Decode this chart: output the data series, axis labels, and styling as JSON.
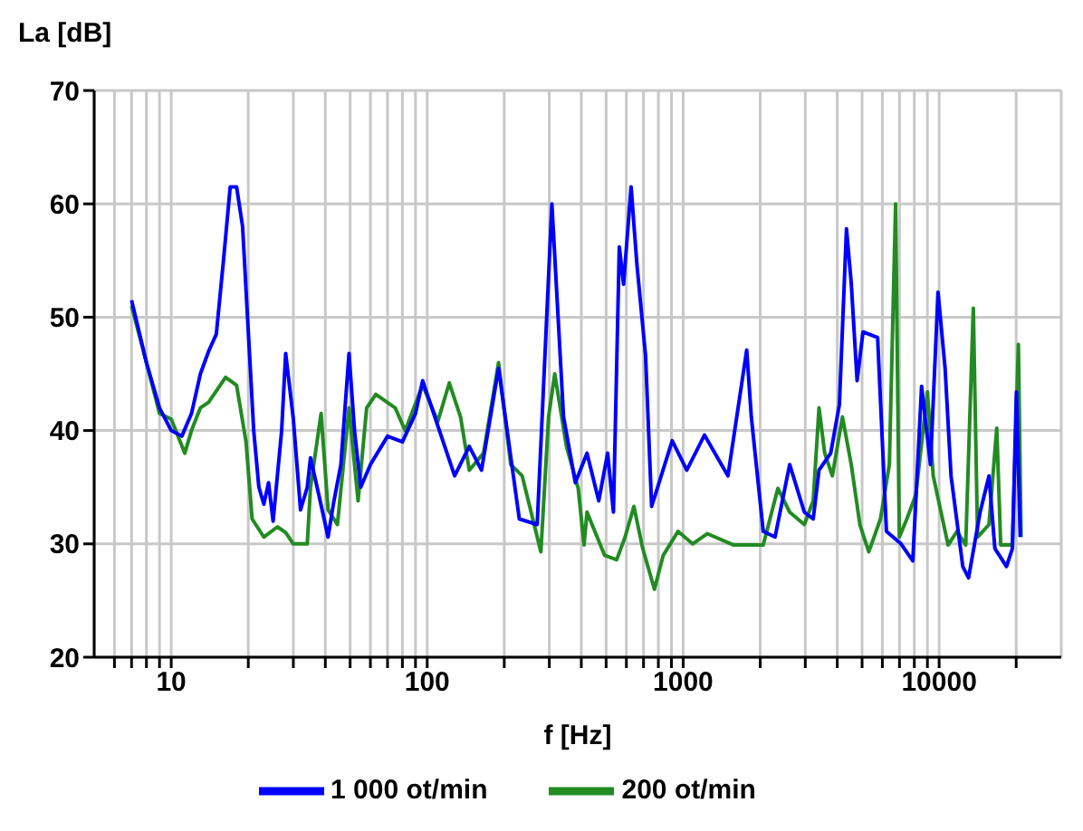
{
  "chart_data": {
    "type": "line",
    "xlabel": "f [Hz]",
    "ylabel": "La [dB]",
    "log": "x",
    "grid": true,
    "legend": "bottom",
    "marker": "none",
    "line_style": "solid",
    "xlim": [
      5,
      30000
    ],
    "ylim": [
      20,
      70
    ],
    "yticks": [
      20,
      30,
      40,
      50,
      60,
      70
    ],
    "xticks": [
      {
        "value": 6,
        "label": null
      },
      {
        "value": 7,
        "label": null
      },
      {
        "value": 8,
        "label": null
      },
      {
        "value": 9,
        "label": null
      },
      10,
      {
        "value": 20,
        "label": null
      },
      {
        "value": 30,
        "label": null
      },
      {
        "value": 40,
        "label": null
      },
      {
        "value": 50,
        "label": null
      },
      {
        "value": 60,
        "label": null
      },
      {
        "value": 70,
        "label": null
      },
      {
        "value": 80,
        "label": null
      },
      {
        "value": 90,
        "label": null
      },
      100,
      {
        "value": 200,
        "label": null
      },
      {
        "value": 300,
        "label": null
      },
      {
        "value": 400,
        "label": null
      },
      {
        "value": 500,
        "label": null
      },
      {
        "value": 600,
        "label": null
      },
      {
        "value": 700,
        "label": null
      },
      {
        "value": 800,
        "label": null
      },
      {
        "value": 900,
        "label": null
      },
      1000,
      {
        "value": 2000,
        "label": null
      },
      {
        "value": 3000,
        "label": null
      },
      {
        "value": 4000,
        "label": null
      },
      {
        "value": 5000,
        "label": null
      },
      {
        "value": 6000,
        "label": null
      },
      {
        "value": 7000,
        "label": null
      },
      {
        "value": 8000,
        "label": null
      },
      {
        "value": 9000,
        "label": null
      },
      10000,
      {
        "value": 20000,
        "label": null
      }
    ],
    "series": [
      {
        "name": "200 ot/min",
        "color": "#228b22",
        "x": [
          7,
          8,
          9,
          10,
          11.3,
          12,
          13,
          14,
          16.3,
          18,
          19.6,
          20.7,
          23,
          26,
          28,
          30,
          34,
          35,
          38.5,
          41,
          44.6,
          49.5,
          53.7,
          58,
          63,
          75,
          82,
          96,
          110,
          122,
          135,
          146,
          166,
          190,
          212,
          235,
          278,
          298,
          315,
          350,
          389,
          410,
          421,
          493,
          550,
          593,
          642,
          695,
          772,
          836,
          955,
          1089,
          1242,
          1575,
          2055,
          2344,
          2607,
          2974,
          3221,
          3394,
          3573,
          3826,
          4190,
          4536,
          4903,
          5310,
          5900,
          6390,
          6760,
          6990,
          7480,
          8100,
          9000,
          9480,
          10840,
          11740,
          12700,
          13600,
          14130,
          15660,
          16790,
          17400,
          19330,
          20400,
          20900
        ],
        "values": [
          51,
          46,
          41.5,
          41,
          38,
          40,
          42,
          42.5,
          44.7,
          44,
          39,
          32.2,
          30.6,
          31.5,
          31,
          30,
          30,
          35,
          41.5,
          33,
          31.7,
          42,
          33.8,
          42,
          43.2,
          42,
          40,
          44,
          40.8,
          44.2,
          41.2,
          36.5,
          38,
          46,
          37,
          36,
          29.3,
          41.2,
          45,
          38.6,
          34.9,
          29.9,
          32.8,
          29,
          28.6,
          30.6,
          33.3,
          29.6,
          26,
          29,
          31.1,
          30,
          30.9,
          29.9,
          29.9,
          34.9,
          32.8,
          31.7,
          33.8,
          42,
          38,
          36,
          41.2,
          37,
          31.7,
          29.3,
          32.2,
          37,
          60,
          30.6,
          32.2,
          34.3,
          43.4,
          36,
          29.9,
          31.1,
          29.9,
          50.8,
          30.6,
          31.7,
          40.2,
          29.9,
          29.9,
          47.6,
          30.6
        ]
      },
      {
        "name": "1 000 ot/min",
        "color": "#0000ff",
        "x": [
          7,
          8,
          9,
          10,
          11,
          12,
          13,
          14,
          15,
          16,
          17,
          18,
          19,
          21,
          22,
          23,
          24,
          25,
          27,
          28,
          30,
          32,
          34,
          35,
          38,
          41,
          43,
          46,
          49.5,
          52,
          55,
          60,
          70,
          80,
          90,
          96,
          128,
          146,
          163,
          190,
          229,
          269,
          307,
          341,
          379,
          421,
          468,
          507,
          534,
          563,
          585,
          626,
          660,
          713,
          753,
          906,
          1033,
          1211,
          1496,
          1771,
          1846,
          2055,
          2285,
          2607,
          2974,
          3221,
          3394,
          3770,
          4077,
          4345,
          4536,
          4781,
          5040,
          5750,
          6225,
          7100,
          7890,
          8540,
          9250,
          9900,
          10550,
          11130,
          12370,
          13030,
          14460,
          15660,
          16510,
          18330,
          19330,
          20040,
          20740
        ],
        "values": [
          51.5,
          46,
          42,
          40,
          39.5,
          41.5,
          45,
          47,
          48.5,
          55,
          61.5,
          61.5,
          58,
          40,
          35,
          33.5,
          35.4,
          32,
          40,
          46.8,
          41,
          33,
          35,
          37.6,
          34,
          30.6,
          33.5,
          37,
          46.8,
          40,
          35,
          37,
          39.5,
          39,
          41.5,
          44.4,
          36,
          38.6,
          36.5,
          45.5,
          32.2,
          31.7,
          60,
          41.2,
          35.4,
          38,
          33.8,
          38,
          32.8,
          56.2,
          52.9,
          61.5,
          54.6,
          46.6,
          33.3,
          39.1,
          36.5,
          39.6,
          36,
          47.1,
          41.2,
          31.1,
          30.6,
          37,
          32.8,
          32.2,
          36.5,
          38,
          42.3,
          57.8,
          53,
          44.4,
          48.7,
          48.2,
          31.1,
          30,
          28.5,
          43.9,
          37,
          52.2,
          45.5,
          36,
          28,
          27,
          32.8,
          36,
          29.6,
          28,
          29.6,
          43.4,
          30.6
        ]
      }
    ]
  }
}
